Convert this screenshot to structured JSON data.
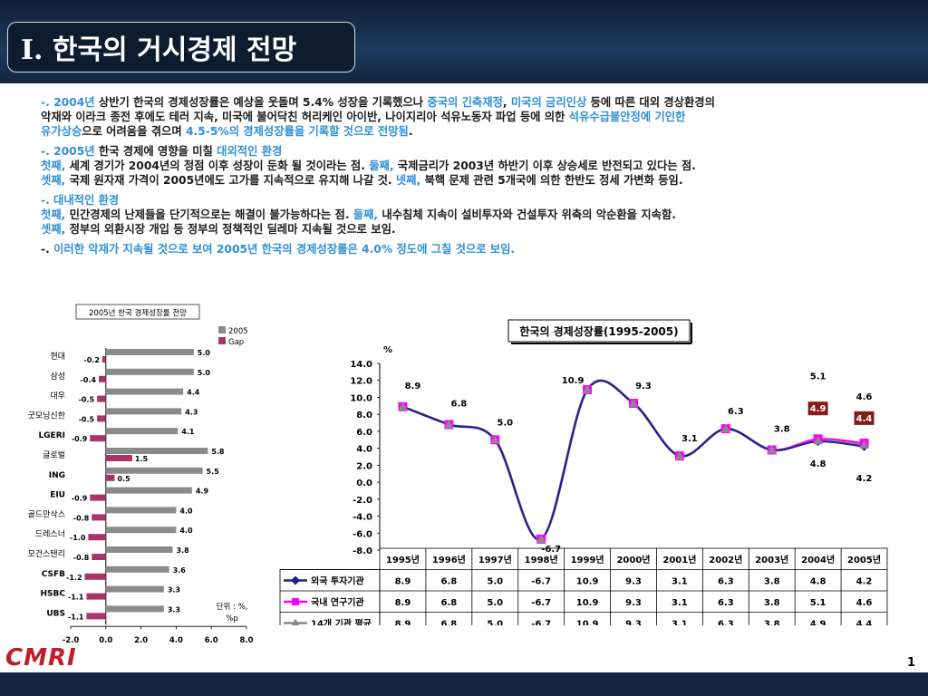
{
  "page": {
    "title": "I. 한국의 거시경제 전망",
    "page_number": "1",
    "logo": "CMRI"
  },
  "text": {
    "p1_a": "-. ",
    "p1_b": "2004년",
    "p1_c": " 상반기 한국의 경제성장률은 예상을 웃돌며 5.4% 성장을 기록했으나 ",
    "p1_d": "중국의 긴축재정",
    "p1_e": ", ",
    "p1_f": "미국의 금리인상",
    "p1_g": " 등에 따른 대외 경상환경의",
    "p1_h": "악재와 이라크 종전 후에도 테러 지속, 미국에 불어닥친 허리케인 아이반, 나이지리아 석유노동자 파업 등에 의한 ",
    "p1_i": "석유수급불안정에 기인한",
    "p1_j": "유가상승",
    "p1_k": "으로 어려움을 겪으며 ",
    "p1_l": "4.5-5%의 경제성장률을 기록할 것으로 전망됨",
    "p1_m": ".",
    "p2_a": "-. ",
    "p2_b": "2005년",
    "p2_c": " 한국 경제에 영향을 미칠 ",
    "p2_d": "대외적인 환경",
    "p2_e": "첫째,",
    "p2_f": " 세계 경기가 2004년의 정점 이후 성장이 둔화 될 것이라는 점. ",
    "p2_g": "둘째,",
    "p2_h": " 국제금리가 2003년 하반기 이후 상승세로 반전되고 있다는 점.",
    "p2_i": "셋째,",
    "p2_j": " 국제 원자재 가격이 2005년에도 고가를 지속적으로 유지해 나갈 것. ",
    "p2_k": "넷째,",
    "p2_l": " 북핵 문제 관련 5개국에 의한 한반도 정세 가변화 등임.",
    "p3_a": "-. 대내적인 환경",
    "p3_b": "첫째,",
    "p3_c": " 민간경제의 난제들을 단기적으로는 해결이 불가능하다는 점.      ",
    "p3_d": "둘째,",
    "p3_e": " 내수침체 지속이 설비투자와 건설투자 위축의 악순환을 지속함.",
    "p3_f": "셋째,",
    "p3_g": " 정부의 외환시장 개입 등 정부의 정책적인 딜레마 지속될 것으로 보임.",
    "p4_a": "-. ",
    "p4_b": "이러한 악재가 지속될 것으로 보여 2005년 한국의 경제성장률은 4.0% 정도에 그칠 것으로 보임."
  },
  "chart_data": [
    {
      "type": "bar",
      "orientation": "horizontal",
      "title": "2005년 한국 경제성장률 전망",
      "categories": [
        "현대",
        "삼성",
        "대우",
        "굿모닝신한",
        "LGERI",
        "글로벌",
        "ING",
        "EIU",
        "골드만삭스",
        "드레스너",
        "모건스탠리",
        "CSFB",
        "HSBC",
        "UBS"
      ],
      "series": [
        {
          "name": "2005",
          "values": [
            5.0,
            5.0,
            4.4,
            4.3,
            4.1,
            5.8,
            5.5,
            4.9,
            4.0,
            4.0,
            3.8,
            3.6,
            3.3,
            3.3
          ],
          "color": "#8a8a8a"
        },
        {
          "name": "Gap",
          "values": [
            -0.2,
            -0.4,
            -0.5,
            -0.5,
            -0.9,
            1.5,
            0.5,
            -0.9,
            -0.8,
            -1.0,
            -0.8,
            -1.2,
            -1.1,
            -1.1
          ],
          "color": "#a8346a"
        }
      ],
      "xlim": [
        -2.0,
        8.0
      ],
      "xticks": [
        "-2.0",
        "0.0",
        "2.0",
        "4.0",
        "6.0",
        "8.0"
      ],
      "unit_note": "단위 : %, %p",
      "legend": "top-right"
    },
    {
      "type": "line",
      "title": "한국의 경제성장률(1995-2005)",
      "ylabel": "%",
      "ylim": [
        -8.0,
        14.0
      ],
      "yticks": [
        "14.0",
        "12.0",
        "10.0",
        "8.0",
        "6.0",
        "4.0",
        "2.0",
        "0.0",
        "-2.0",
        "-4.0",
        "-6.0",
        "-8.0"
      ],
      "categories": [
        "1995년",
        "1996년",
        "1997년",
        "1998년",
        "1999년",
        "2000년",
        "2001년",
        "2002년",
        "2003년",
        "2004년",
        "2005년"
      ],
      "series": [
        {
          "name": "외국 투자기관",
          "values": [
            8.9,
            6.8,
            5.0,
            -6.7,
            10.9,
            9.3,
            3.1,
            6.3,
            3.8,
            4.8,
            4.2
          ],
          "color": "#1f1f8a",
          "marker": "diamond"
        },
        {
          "name": "국내 연구기관",
          "values": [
            8.9,
            6.8,
            5.0,
            -6.7,
            10.9,
            9.3,
            3.1,
            6.3,
            3.8,
            5.1,
            4.6
          ],
          "color": "#ff00ff",
          "marker": "square"
        },
        {
          "name": "14개 기관 평균",
          "values": [
            8.9,
            6.8,
            5.0,
            -6.7,
            10.9,
            9.3,
            3.1,
            6.3,
            3.8,
            4.9,
            4.4
          ],
          "color": "#8a8a8a",
          "marker": "triangle"
        }
      ],
      "highlight_color": "#8b1a1a",
      "table": true
    }
  ]
}
